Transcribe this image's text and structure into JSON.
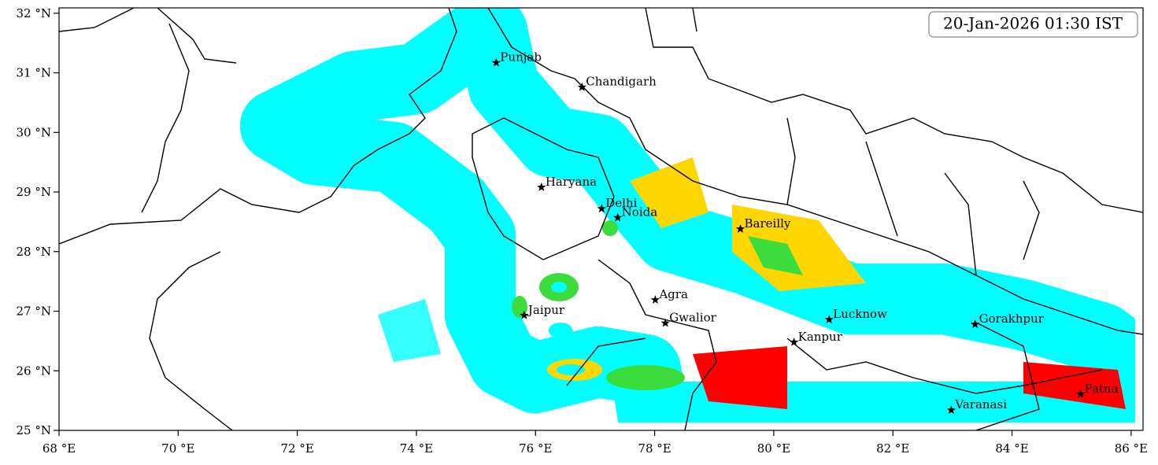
{
  "map": {
    "timestamp": "20-Jan-2026 01:30 IST",
    "xlim": [
      68,
      86.2
    ],
    "ylim": [
      25,
      32.09
    ],
    "xticks": [
      {
        "value": 68,
        "label": "68 °E"
      },
      {
        "value": 70,
        "label": "70 °E"
      },
      {
        "value": 72,
        "label": "72 °E"
      },
      {
        "value": 74,
        "label": "74 °E"
      },
      {
        "value": 76,
        "label": "76 °E"
      },
      {
        "value": 78,
        "label": "78 °E"
      },
      {
        "value": 80,
        "label": "80 °E"
      },
      {
        "value": 82,
        "label": "82 °E"
      },
      {
        "value": 84,
        "label": "84 °E"
      },
      {
        "value": 86,
        "label": "86 °E"
      }
    ],
    "yticks": [
      {
        "value": 25,
        "label": "25 °N"
      },
      {
        "value": 26,
        "label": "26 °N"
      },
      {
        "value": 27,
        "label": "27 °N"
      },
      {
        "value": 28,
        "label": "28 °N"
      },
      {
        "value": 29,
        "label": "29 °N"
      },
      {
        "value": 30,
        "label": "30 °N"
      },
      {
        "value": 31,
        "label": "31 °N"
      },
      {
        "value": 32,
        "label": "32 °N"
      }
    ],
    "cities": [
      {
        "name": "Punjab",
        "lon": 75.34,
        "lat": 31.17
      },
      {
        "name": "Chandigarh",
        "lon": 76.78,
        "lat": 30.76
      },
      {
        "name": "Haryana",
        "lon": 76.1,
        "lat": 29.08
      },
      {
        "name": "Delhi",
        "lon": 77.11,
        "lat": 28.72
      },
      {
        "name": "Noida",
        "lon": 77.38,
        "lat": 28.57
      },
      {
        "name": "Bareilly",
        "lon": 79.44,
        "lat": 28.38
      },
      {
        "name": "Agra",
        "lon": 78.01,
        "lat": 27.19
      },
      {
        "name": "Jaipur",
        "lon": 75.81,
        "lat": 26.93
      },
      {
        "name": "Gwalior",
        "lon": 78.18,
        "lat": 26.8
      },
      {
        "name": "Lucknow",
        "lon": 80.93,
        "lat": 26.86
      },
      {
        "name": "Kanpur",
        "lon": 80.34,
        "lat": 26.48
      },
      {
        "name": "Gorakhpur",
        "lon": 83.38,
        "lat": 26.78
      },
      {
        "name": "Patna",
        "lon": 85.15,
        "lat": 25.61
      },
      {
        "name": "Varanasi",
        "lon": 82.98,
        "lat": 25.34
      }
    ]
  }
}
